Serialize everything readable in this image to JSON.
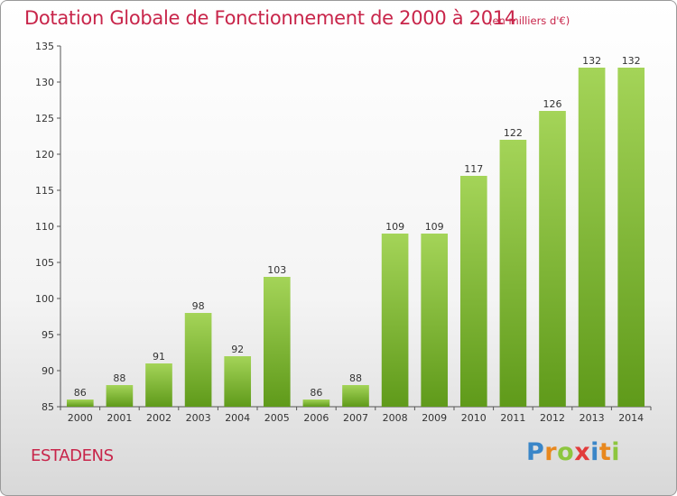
{
  "header": {
    "title": "Dotation Globale de Fonctionnement de 2000 à 2014",
    "unit": "(en milliers d'€)"
  },
  "footer": {
    "commune": "ESTADENS",
    "logo": {
      "letters": [
        "P",
        "r",
        "o",
        "x",
        "i",
        "t",
        "i"
      ]
    }
  },
  "colors": {
    "title": "#c8254a",
    "bar_top": "#a4d458",
    "bar_bottom": "#5f9a1a"
  },
  "chart_data": {
    "type": "bar",
    "title": "Dotation Globale de Fonctionnement de 2000 à 2014",
    "xlabel": "",
    "ylabel": "",
    "categories": [
      "2000",
      "2001",
      "2002",
      "2003",
      "2004",
      "2005",
      "2006",
      "2007",
      "2008",
      "2009",
      "2010",
      "2011",
      "2012",
      "2013",
      "2014"
    ],
    "values": [
      86,
      88,
      91,
      98,
      92,
      103,
      86,
      88,
      109,
      109,
      117,
      122,
      126,
      132,
      132
    ],
    "ylim": [
      85,
      135
    ],
    "yticks": [
      85,
      90,
      95,
      100,
      105,
      110,
      115,
      120,
      125,
      130,
      135
    ],
    "grid": false,
    "legend": "none"
  }
}
